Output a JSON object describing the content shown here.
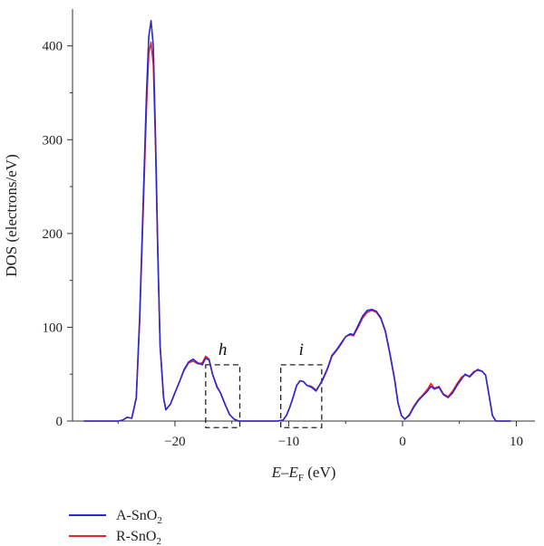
{
  "chart_data": {
    "type": "line",
    "xlabel": "E–E_F (eV)",
    "xlabel_parts": {
      "e": "E",
      "dash": "–",
      "ef": "E",
      "ef_sub": "F",
      "unit": " (eV)"
    },
    "ylabel": "DOS (electrons/eV)",
    "xlim": [
      -29,
      11
    ],
    "ylim": [
      0,
      440
    ],
    "xticks": [
      -20,
      -10,
      0,
      10
    ],
    "xtick_labels": [
      "−20",
      "−10",
      "0",
      "10"
    ],
    "yticks": [
      0,
      100,
      200,
      300,
      400
    ],
    "ytick_labels": [
      "0",
      "100",
      "200",
      "300",
      "400"
    ],
    "grid": false,
    "legend_position": "bottom-left, below plot",
    "annotations": [
      {
        "label": "h",
        "x_range": [
          -17.3,
          -14.3
        ],
        "y_range": [
          -7,
          60
        ]
      },
      {
        "label": "i",
        "x_range": [
          -10.7,
          -7.1
        ],
        "y_range": [
          -7,
          60
        ]
      }
    ],
    "series": [
      {
        "name": "A-SnO2",
        "name_parts": {
          "base": "A-SnO",
          "sub": "2"
        },
        "color": "#2a2ad0",
        "points": [
          [
            -28,
            0
          ],
          [
            -25,
            0
          ],
          [
            -24.6,
            1
          ],
          [
            -24.2,
            4
          ],
          [
            -23.8,
            3
          ],
          [
            -23.4,
            25
          ],
          [
            -23.1,
            110
          ],
          [
            -22.8,
            230
          ],
          [
            -22.5,
            350
          ],
          [
            -22.3,
            410
          ],
          [
            -22.1,
            427
          ],
          [
            -21.9,
            400
          ],
          [
            -21.7,
            300
          ],
          [
            -21.5,
            180
          ],
          [
            -21.3,
            80
          ],
          [
            -21.0,
            25
          ],
          [
            -20.8,
            12
          ],
          [
            -20.4,
            18
          ],
          [
            -20.0,
            30
          ],
          [
            -19.6,
            42
          ],
          [
            -19.2,
            55
          ],
          [
            -18.8,
            63
          ],
          [
            -18.4,
            66
          ],
          [
            -18.0,
            62
          ],
          [
            -17.6,
            60
          ],
          [
            -17.3,
            67
          ],
          [
            -17.0,
            65
          ],
          [
            -16.7,
            50
          ],
          [
            -16.3,
            36
          ],
          [
            -16.0,
            30
          ],
          [
            -15.6,
            18
          ],
          [
            -15.2,
            7
          ],
          [
            -14.8,
            2
          ],
          [
            -14.4,
            0
          ],
          [
            -11.0,
            0
          ],
          [
            -10.5,
            1
          ],
          [
            -10.2,
            6
          ],
          [
            -9.9,
            15
          ],
          [
            -9.6,
            26
          ],
          [
            -9.3,
            38
          ],
          [
            -9.0,
            43
          ],
          [
            -8.7,
            42
          ],
          [
            -8.4,
            38
          ],
          [
            -8.0,
            36
          ],
          [
            -7.6,
            32
          ],
          [
            -7.3,
            38
          ],
          [
            -7.0,
            45
          ],
          [
            -6.6,
            56
          ],
          [
            -6.2,
            70
          ],
          [
            -5.8,
            76
          ],
          [
            -5.4,
            83
          ],
          [
            -5.0,
            90
          ],
          [
            -4.6,
            93
          ],
          [
            -4.3,
            92
          ],
          [
            -3.9,
            102
          ],
          [
            -3.5,
            112
          ],
          [
            -3.1,
            118
          ],
          [
            -2.7,
            119
          ],
          [
            -2.3,
            117
          ],
          [
            -1.9,
            110
          ],
          [
            -1.5,
            96
          ],
          [
            -1.1,
            72
          ],
          [
            -0.7,
            45
          ],
          [
            -0.4,
            20
          ],
          [
            -0.1,
            6
          ],
          [
            0.2,
            2
          ],
          [
            0.6,
            6
          ],
          [
            1.0,
            15
          ],
          [
            1.4,
            22
          ],
          [
            1.8,
            27
          ],
          [
            2.2,
            32
          ],
          [
            2.5,
            37
          ],
          [
            2.8,
            34
          ],
          [
            3.2,
            36
          ],
          [
            3.6,
            28
          ],
          [
            4.0,
            25
          ],
          [
            4.4,
            30
          ],
          [
            4.8,
            38
          ],
          [
            5.2,
            45
          ],
          [
            5.5,
            50
          ],
          [
            5.9,
            47
          ],
          [
            6.3,
            52
          ],
          [
            6.6,
            55
          ],
          [
            7.0,
            53
          ],
          [
            7.3,
            49
          ],
          [
            7.6,
            28
          ],
          [
            7.9,
            6
          ],
          [
            8.2,
            0
          ],
          [
            9.5,
            0
          ]
        ]
      },
      {
        "name": "R-SnO2",
        "name_parts": {
          "base": "R-SnO",
          "sub": "2"
        },
        "color": "#e8232a",
        "points": [
          [
            -28,
            0
          ],
          [
            -25,
            0
          ],
          [
            -24.6,
            1
          ],
          [
            -24.2,
            4
          ],
          [
            -23.8,
            3
          ],
          [
            -23.4,
            24
          ],
          [
            -23.1,
            105
          ],
          [
            -22.8,
            220
          ],
          [
            -22.5,
            335
          ],
          [
            -22.3,
            392
          ],
          [
            -22.1,
            404
          ],
          [
            -21.9,
            380
          ],
          [
            -21.7,
            290
          ],
          [
            -21.5,
            175
          ],
          [
            -21.3,
            80
          ],
          [
            -21.0,
            25
          ],
          [
            -20.8,
            12
          ],
          [
            -20.4,
            18
          ],
          [
            -20.0,
            30
          ],
          [
            -19.6,
            42
          ],
          [
            -19.2,
            54
          ],
          [
            -18.8,
            62
          ],
          [
            -18.4,
            64
          ],
          [
            -18.0,
            61
          ],
          [
            -17.6,
            62
          ],
          [
            -17.3,
            69
          ],
          [
            -17.0,
            66
          ],
          [
            -16.7,
            50
          ],
          [
            -16.3,
            37
          ],
          [
            -16.0,
            30
          ],
          [
            -15.6,
            18
          ],
          [
            -15.2,
            7
          ],
          [
            -14.8,
            2
          ],
          [
            -14.4,
            0
          ],
          [
            -11.0,
            0
          ],
          [
            -10.5,
            1
          ],
          [
            -10.2,
            6
          ],
          [
            -9.9,
            15
          ],
          [
            -9.6,
            26
          ],
          [
            -9.3,
            38
          ],
          [
            -9.0,
            43
          ],
          [
            -8.7,
            42
          ],
          [
            -8.4,
            38
          ],
          [
            -8.0,
            37
          ],
          [
            -7.6,
            33
          ],
          [
            -7.3,
            38
          ],
          [
            -7.0,
            44
          ],
          [
            -6.6,
            55
          ],
          [
            -6.2,
            69
          ],
          [
            -5.8,
            75
          ],
          [
            -5.4,
            82
          ],
          [
            -5.0,
            90
          ],
          [
            -4.6,
            92
          ],
          [
            -4.3,
            91
          ],
          [
            -3.9,
            100
          ],
          [
            -3.5,
            110
          ],
          [
            -3.1,
            116
          ],
          [
            -2.7,
            118
          ],
          [
            -2.3,
            116
          ],
          [
            -1.9,
            109
          ],
          [
            -1.5,
            95
          ],
          [
            -1.1,
            71
          ],
          [
            -0.7,
            44
          ],
          [
            -0.4,
            19
          ],
          [
            -0.1,
            6
          ],
          [
            0.2,
            2
          ],
          [
            0.6,
            7
          ],
          [
            1.0,
            16
          ],
          [
            1.4,
            23
          ],
          [
            1.8,
            28
          ],
          [
            2.2,
            34
          ],
          [
            2.5,
            40
          ],
          [
            2.8,
            35
          ],
          [
            3.2,
            37
          ],
          [
            3.6,
            29
          ],
          [
            4.0,
            26
          ],
          [
            4.4,
            32
          ],
          [
            4.8,
            40
          ],
          [
            5.2,
            47
          ],
          [
            5.5,
            49
          ],
          [
            5.9,
            48
          ],
          [
            6.3,
            53
          ],
          [
            6.6,
            54
          ],
          [
            7.0,
            53
          ],
          [
            7.3,
            49
          ],
          [
            7.6,
            28
          ],
          [
            7.9,
            6
          ],
          [
            8.2,
            0
          ],
          [
            9.5,
            0
          ]
        ]
      }
    ]
  }
}
